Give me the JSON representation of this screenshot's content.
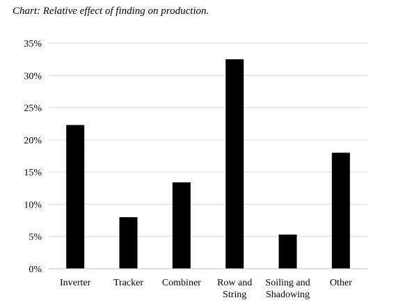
{
  "chart_data": {
    "type": "bar",
    "title": "Chart: Relative effect of finding on production.",
    "xlabel": "",
    "ylabel": "",
    "categories": [
      [
        "Inverter"
      ],
      [
        "Tracker"
      ],
      [
        "Combiner"
      ],
      [
        "Row and",
        "String"
      ],
      [
        "Soiling and",
        "Shadowing"
      ],
      [
        "Other"
      ]
    ],
    "values": [
      22.3,
      8.0,
      13.4,
      32.5,
      5.3,
      18.0
    ],
    "ylim": [
      0,
      35
    ],
    "yticks": [
      0,
      5,
      10,
      15,
      20,
      25,
      30,
      35
    ],
    "ytick_suffix": "%",
    "grid": true,
    "legend": "none",
    "colors": {
      "bar": "#000000",
      "grid": "#d9d9d9",
      "axis": "#bfbfbf"
    }
  }
}
